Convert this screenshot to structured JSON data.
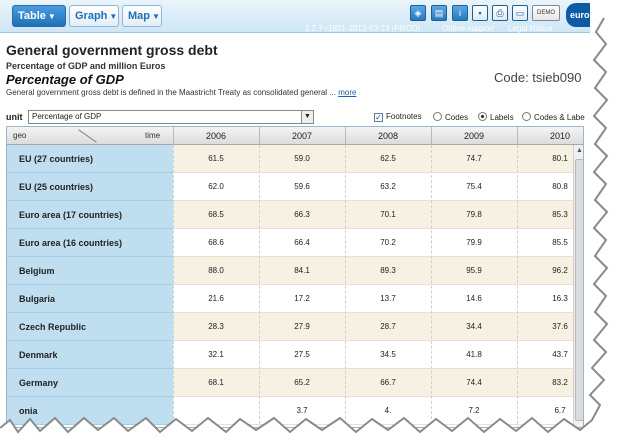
{
  "toolbar": {
    "table_label": "Table",
    "graph_label": "Graph",
    "map_label": "Map",
    "demo_label": "DEMO",
    "logo_text": "eurost",
    "version": "2.2.7-r1821-2012-03-13 (PROD)",
    "online_support": "Online support",
    "legal_notice": "Legal Notice"
  },
  "header": {
    "title": "General government gross debt",
    "subtitle": "Percentage of GDP and million Euros",
    "unit_title": "Percentage of GDP",
    "code": "Code: tsieb090",
    "description": "General government gross debt is defined in the Maastricht Treaty as consolidated general ...",
    "more_link": "more"
  },
  "controls": {
    "unit_label": "unit",
    "unit_value": "Percentage of GDP",
    "footnotes_label": "Footnotes",
    "codes_label": "Codes",
    "labels_label": "Labels",
    "codes_labels_label": "Codes & Labe"
  },
  "table": {
    "geo_header": "geo",
    "time_header": "time",
    "years": [
      "2006",
      "2007",
      "2008",
      "2009",
      "2010"
    ],
    "rows": [
      {
        "geo": "EU (27 countries)",
        "values": [
          "61.5",
          "59.0",
          "62.5",
          "74.7",
          "80.1"
        ]
      },
      {
        "geo": "EU (25 countries)",
        "values": [
          "62.0",
          "59.6",
          "63.2",
          "75.4",
          "80.8"
        ]
      },
      {
        "geo": "Euro area (17 countries)",
        "values": [
          "68.5",
          "66.3",
          "70.1",
          "79.8",
          "85.3"
        ]
      },
      {
        "geo": "Euro area (16 countries)",
        "values": [
          "68.6",
          "66.4",
          "70.2",
          "79.9",
          "85.5"
        ]
      },
      {
        "geo": "Belgium",
        "values": [
          "88.0",
          "84.1",
          "89.3",
          "95.9",
          "96.2"
        ]
      },
      {
        "geo": "Bulgaria",
        "values": [
          "21.6",
          "17.2",
          "13.7",
          "14.6",
          "16.3"
        ]
      },
      {
        "geo": "Czech Republic",
        "values": [
          "28.3",
          "27.9",
          "28.7",
          "34.4",
          "37.6"
        ]
      },
      {
        "geo": "Denmark",
        "values": [
          "32.1",
          "27.5",
          "34.5",
          "41.8",
          "43.7"
        ]
      },
      {
        "geo": "Germany",
        "values": [
          "68.1",
          "65.2",
          "66.7",
          "74.4",
          "83.2"
        ]
      },
      {
        "geo": "onia",
        "values": [
          "",
          "3.7",
          "4.",
          "7.2",
          "6.7"
        ]
      }
    ]
  },
  "colors": {
    "accent": "#1e6fb8",
    "geo_column": "#bfdff0",
    "row_tint": "#f6f1e3"
  }
}
